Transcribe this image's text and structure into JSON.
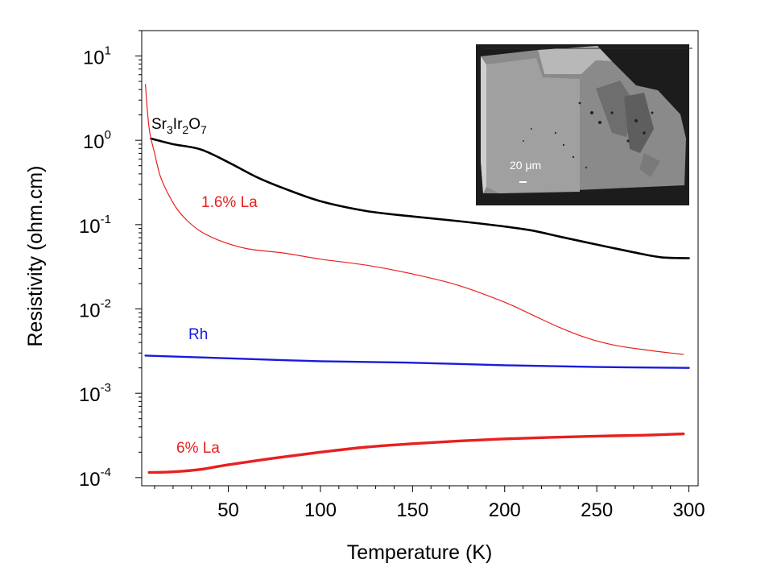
{
  "chart_data": {
    "type": "line",
    "xlabel": "Temperature (K)",
    "ylabel": "Resistivity (ohm.cm)",
    "xlim": [
      3,
      305
    ],
    "ylim": [
      8e-05,
      20
    ],
    "yscale": "log",
    "x_ticks": [
      50,
      100,
      150,
      200,
      250,
      300
    ],
    "x_tick_labels": [
      "50",
      "100",
      "150",
      "200",
      "250",
      "300"
    ],
    "y_ticks": [
      {
        "value": 10,
        "base": "10",
        "exp": "1"
      },
      {
        "value": 1,
        "base": "10",
        "exp": "0"
      },
      {
        "value": 0.1,
        "base": "10",
        "exp": "-1"
      },
      {
        "value": 0.01,
        "base": "10",
        "exp": "-2"
      },
      {
        "value": 0.001,
        "base": "10",
        "exp": "-3"
      },
      {
        "value": 0.0001,
        "base": "10",
        "exp": "-4"
      }
    ],
    "grid": false,
    "legend": "none",
    "series": [
      {
        "name": "Sr3Ir2O7",
        "color": "#000000",
        "x": [
          8,
          20,
          35,
          50,
          65,
          80,
          100,
          125,
          150,
          175,
          200,
          215,
          230,
          250,
          270,
          285,
          300
        ],
        "y": [
          1.05,
          0.9,
          0.78,
          0.55,
          0.37,
          0.27,
          0.19,
          0.145,
          0.125,
          0.11,
          0.095,
          0.085,
          0.072,
          0.058,
          0.047,
          0.041,
          0.04
        ]
      },
      {
        "name": "1.6% La",
        "color": "#e82020",
        "x": [
          5,
          7,
          10,
          13,
          17,
          22,
          28,
          35,
          45,
          60,
          80,
          100,
          125,
          150,
          175,
          200,
          215,
          230,
          245,
          260,
          275,
          290,
          297
        ],
        "y": [
          4.6,
          1.4,
          0.7,
          0.38,
          0.24,
          0.155,
          0.11,
          0.083,
          0.065,
          0.052,
          0.046,
          0.039,
          0.033,
          0.026,
          0.019,
          0.012,
          0.0085,
          0.006,
          0.0045,
          0.0037,
          0.0033,
          0.003,
          0.0029
        ]
      },
      {
        "name": "Rh",
        "color": "#1a1adc",
        "x": [
          5,
          50,
          100,
          150,
          200,
          250,
          300
        ],
        "y": [
          0.0028,
          0.0026,
          0.0024,
          0.0023,
          0.00215,
          0.00205,
          0.002
        ]
      },
      {
        "name": "6% La",
        "color": "#e82020",
        "x": [
          7,
          20,
          35,
          50,
          75,
          100,
          125,
          150,
          175,
          200,
          225,
          250,
          275,
          297
        ],
        "y": [
          0.000115,
          0.000117,
          0.000125,
          0.000142,
          0.00017,
          0.0002,
          0.00023,
          0.000252,
          0.000272,
          0.000288,
          0.0003,
          0.00031,
          0.000318,
          0.00033
        ]
      }
    ],
    "inset": {
      "description_label": "20 μm"
    }
  },
  "labels": {
    "sr3": {
      "parts": [
        "Sr",
        "3",
        "Ir",
        "2",
        "O",
        "7"
      ]
    },
    "la16": "1.6% La",
    "rh": "Rh",
    "la6": "6% La"
  }
}
